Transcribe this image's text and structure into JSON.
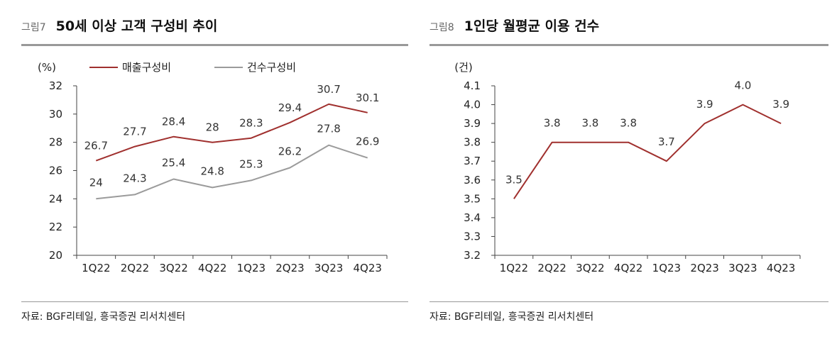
{
  "charts": [
    {
      "fig_label": "그림7",
      "title": "50세 이상 고객 구성비 추이",
      "source": "자료: BGF리테일, 흥국증권 리서치센터"
    },
    {
      "fig_label": "그림8",
      "title": "1인당 월평균 이용 건수",
      "source": "자료: BGF리테일, 흥국증권 리서치센터"
    }
  ],
  "chart_data": [
    {
      "type": "line",
      "title": "50세 이상 고객 구성비 추이",
      "ylabel": "(%)",
      "categories": [
        "1Q22",
        "2Q22",
        "3Q22",
        "4Q22",
        "1Q23",
        "2Q23",
        "3Q23",
        "4Q23"
      ],
      "ylim": [
        20,
        32
      ],
      "yticks": [
        "20",
        "22",
        "24",
        "26",
        "28",
        "30",
        "32"
      ],
      "legend_position": "top",
      "grid": false,
      "series": [
        {
          "name": "매출구성비",
          "color": "#a0302e",
          "values": [
            26.7,
            27.7,
            28.4,
            28.0,
            28.3,
            29.4,
            30.7,
            30.1
          ],
          "labels": [
            "26.7",
            "27.7",
            "28.4",
            "28",
            "28.3",
            "29.4",
            "30.7",
            "30.1"
          ]
        },
        {
          "name": "건수구성비",
          "color": "#9b9b9b",
          "values": [
            24.0,
            24.3,
            25.4,
            24.8,
            25.3,
            26.2,
            27.8,
            26.9
          ],
          "labels": [
            "24",
            "24.3",
            "25.4",
            "24.8",
            "25.3",
            "26.2",
            "27.8",
            "26.9"
          ]
        }
      ]
    },
    {
      "type": "line",
      "title": "1인당 월평균 이용 건수",
      "ylabel": "(건)",
      "categories": [
        "1Q22",
        "2Q22",
        "3Q22",
        "4Q22",
        "1Q23",
        "2Q23",
        "3Q23",
        "4Q23"
      ],
      "ylim": [
        3.2,
        4.1
      ],
      "yticks": [
        "3.2",
        "3.3",
        "3.4",
        "3.5",
        "3.6",
        "3.7",
        "3.8",
        "3.9",
        "4.0",
        "4.1"
      ],
      "legend_position": "none",
      "grid": false,
      "series": [
        {
          "color": "#a0302e",
          "values": [
            3.5,
            3.8,
            3.8,
            3.8,
            3.7,
            3.9,
            4.0,
            3.9
          ],
          "labels": [
            "3.5",
            "3.8",
            "3.8",
            "3.8",
            "3.7",
            "3.9",
            "4.0",
            "3.9"
          ]
        }
      ]
    }
  ]
}
